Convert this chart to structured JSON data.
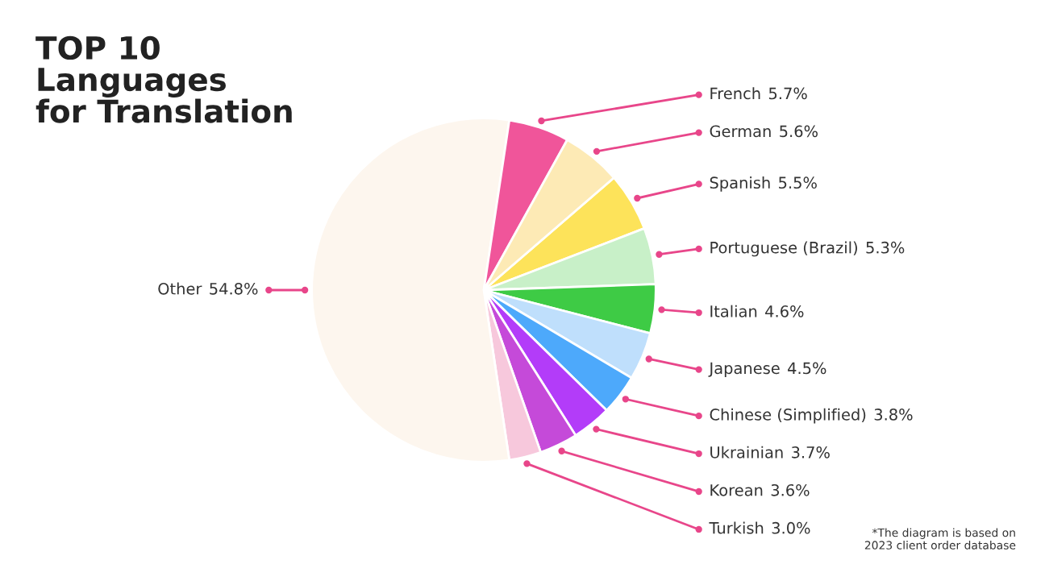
{
  "chart_data": {
    "type": "pie",
    "title": "TOP 10\nLanguages\nfor Translation",
    "categories": [
      "Spanish",
      "Portuguese (Brazil)",
      "Italian",
      "Japanese",
      "Chinese (Simplified)",
      "Ukrainian",
      "Korean",
      "Turkish",
      "Other",
      "French",
      "German"
    ],
    "values": [
      5.5,
      5.3,
      4.6,
      4.5,
      3.8,
      3.7,
      3.6,
      3.0,
      54.8,
      5.7,
      5.6
    ],
    "value_labels": [
      "5.5%",
      "5.3%",
      "4.6%",
      "4.5%",
      "3.8%",
      "3.7%",
      "3.6%",
      "3.0%",
      "54.8%",
      "5.7%",
      "5.6%"
    ],
    "colors": [
      "#fde35a",
      "#c8f0c8",
      "#3ecb45",
      "#bfdffc",
      "#4da9fb",
      "#b33cf9",
      "#c54ad9",
      "#f7c8dc",
      "#fdf6ee",
      "#f0559a",
      "#fdeab5"
    ],
    "annotations": [
      "*The diagram is based on\n2023 client order database"
    ]
  }
}
